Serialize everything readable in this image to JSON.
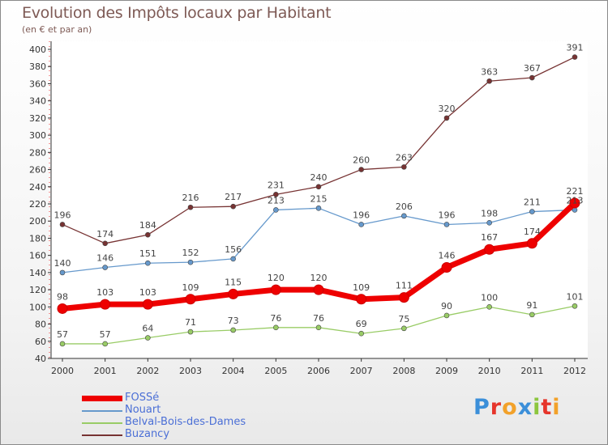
{
  "title": "Evolution des Impôts locaux par Habitant",
  "subtitle": "(en € et par an)",
  "logo": {
    "text": "Proxiti",
    "letters": [
      {
        "ch": "P",
        "color": "#3b8fd9"
      },
      {
        "ch": "r",
        "color": "#e6352b"
      },
      {
        "ch": "o",
        "color": "#f2a12a"
      },
      {
        "ch": "x",
        "color": "#3b8fd9"
      },
      {
        "ch": "i",
        "color": "#8cc63f"
      },
      {
        "ch": "t",
        "color": "#e6352b"
      },
      {
        "ch": "i",
        "color": "#f2a12a"
      }
    ]
  },
  "chart_data": {
    "type": "line",
    "title": "Evolution des Impôts locaux par Habitant",
    "subtitle": "(en € et par an)",
    "x": [
      2000,
      2001,
      2002,
      2003,
      2004,
      2005,
      2006,
      2007,
      2008,
      2009,
      2010,
      2011,
      2012
    ],
    "ylim": [
      40,
      400
    ],
    "ytick_step": 20,
    "grid": false,
    "legend_position": "bottom-left",
    "series": [
      {
        "name": "FOSSé",
        "color": "#ee0000",
        "thick": true,
        "values": [
          98,
          103,
          103,
          109,
          115,
          120,
          120,
          109,
          111,
          146,
          167,
          174,
          221
        ],
        "labels": [
          "98",
          "103",
          "103",
          "109",
          "115",
          "120",
          "120",
          "109",
          "111",
          "146",
          "167",
          "174",
          "221"
        ]
      },
      {
        "name": "Nouart",
        "color": "#6699cc",
        "thick": false,
        "values": [
          140,
          146,
          151,
          152,
          156,
          213,
          215,
          196,
          206,
          196,
          198,
          211,
          213
        ],
        "labels": [
          "140",
          "146",
          "151",
          "152",
          "156",
          "213",
          "215",
          "196",
          "206",
          "196",
          "198",
          "211",
          "213"
        ]
      },
      {
        "name": "Belval-Bois-des-Dames",
        "color": "#99cc66",
        "thick": false,
        "values": [
          57,
          57,
          64,
          71,
          73,
          76,
          76,
          69,
          75,
          90,
          100,
          91,
          101
        ],
        "labels": [
          "57",
          "57",
          "64",
          "71",
          "73",
          "76",
          "76",
          "69",
          "75",
          "90",
          "100",
          "91",
          "101"
        ]
      },
      {
        "name": "Buzancy",
        "color": "#773333",
        "thick": false,
        "values": [
          196,
          174,
          184,
          216,
          217,
          231,
          240,
          260,
          263,
          320,
          363,
          367,
          391
        ],
        "labels": [
          "196",
          "174",
          "184",
          "216",
          "217",
          "231",
          "240",
          "260",
          "263",
          "320",
          "363",
          "367",
          "391"
        ]
      }
    ]
  }
}
